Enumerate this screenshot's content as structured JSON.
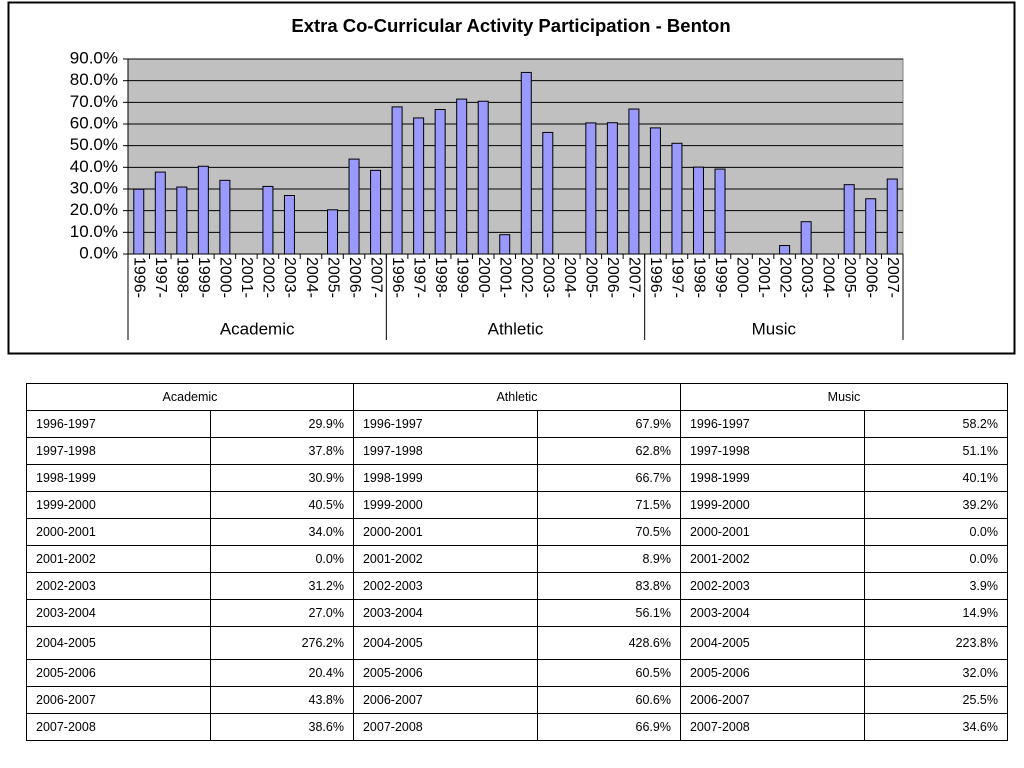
{
  "chart_data": {
    "type": "bar",
    "title": "Extra Co-Curricular Activity Participation - Benton",
    "categories": [
      "1996-",
      "1997-",
      "1998-",
      "1999-",
      "2000-",
      "2001-",
      "2002-",
      "2003-",
      "2004-",
      "2005-",
      "2006-",
      "2007-"
    ],
    "series": [
      {
        "name": "Academic",
        "values": [
          29.9,
          37.8,
          30.9,
          40.5,
          34.0,
          0.0,
          31.2,
          27.0,
          null,
          20.4,
          43.8,
          38.6
        ]
      },
      {
        "name": "Athletic",
        "values": [
          67.9,
          62.8,
          66.7,
          71.5,
          70.5,
          8.9,
          83.8,
          56.1,
          null,
          60.5,
          60.6,
          66.9
        ]
      },
      {
        "name": "Music",
        "values": [
          58.2,
          51.1,
          40.1,
          39.2,
          0.0,
          0.0,
          3.9,
          14.9,
          null,
          32.0,
          25.5,
          34.6
        ]
      }
    ],
    "color": "#9999ff",
    "ylim": [
      0,
      90
    ],
    "yticks": [
      {
        "value": 0,
        "label": "0.0%"
      },
      {
        "value": 10,
        "label": "10.0%"
      },
      {
        "value": 20,
        "label": "20.0%"
      },
      {
        "value": 30,
        "label": "30.0%"
      },
      {
        "value": 40,
        "label": "40.0%"
      },
      {
        "value": 50,
        "label": "50.0%"
      },
      {
        "value": 60,
        "label": "60.0%"
      },
      {
        "value": 70,
        "label": "70.0%"
      },
      {
        "value": 80,
        "label": "80.0%"
      },
      {
        "value": 90,
        "label": "90.0%"
      }
    ],
    "grid": true
  },
  "table": {
    "header": [
      "Academic",
      "Athletic",
      "Music"
    ],
    "rows": [
      [
        "1996-1997",
        "29.9%",
        "1996-1997",
        "67.9%",
        "1996-1997",
        "58.2%"
      ],
      [
        "1997-1998",
        "37.8%",
        "1997-1998",
        "62.8%",
        "1997-1998",
        "51.1%"
      ],
      [
        "1998-1999",
        "30.9%",
        "1998-1999",
        "66.7%",
        "1998-1999",
        "40.1%"
      ],
      [
        "1999-2000",
        "40.5%",
        "1999-2000",
        "71.5%",
        "1999-2000",
        "39.2%"
      ],
      [
        "2000-2001",
        "34.0%",
        "2000-2001",
        "70.5%",
        "2000-2001",
        "0.0%"
      ],
      [
        "2001-2002",
        "0.0%",
        "2001-2002",
        "8.9%",
        "2001-2002",
        "0.0%"
      ],
      [
        "2002-2003",
        "31.2%",
        "2002-2003",
        "83.8%",
        "2002-2003",
        "3.9%"
      ],
      [
        "2003-2004",
        "27.0%",
        "2003-2004",
        "56.1%",
        "2003-2004",
        "14.9%"
      ],
      [
        "2004-2005",
        "276.2%",
        "2004-2005",
        "428.6%",
        "2004-2005",
        "223.8%"
      ],
      [
        "2005-2006",
        "20.4%",
        "2005-2006",
        "60.5%",
        "2005-2006",
        "32.0%"
      ],
      [
        "2006-2007",
        "43.8%",
        "2006-2007",
        "60.6%",
        "2006-2007",
        "25.5%"
      ],
      [
        "2007-2008",
        "38.6%",
        "2007-2008",
        "66.9%",
        "2007-2008",
        "34.6%"
      ]
    ]
  }
}
